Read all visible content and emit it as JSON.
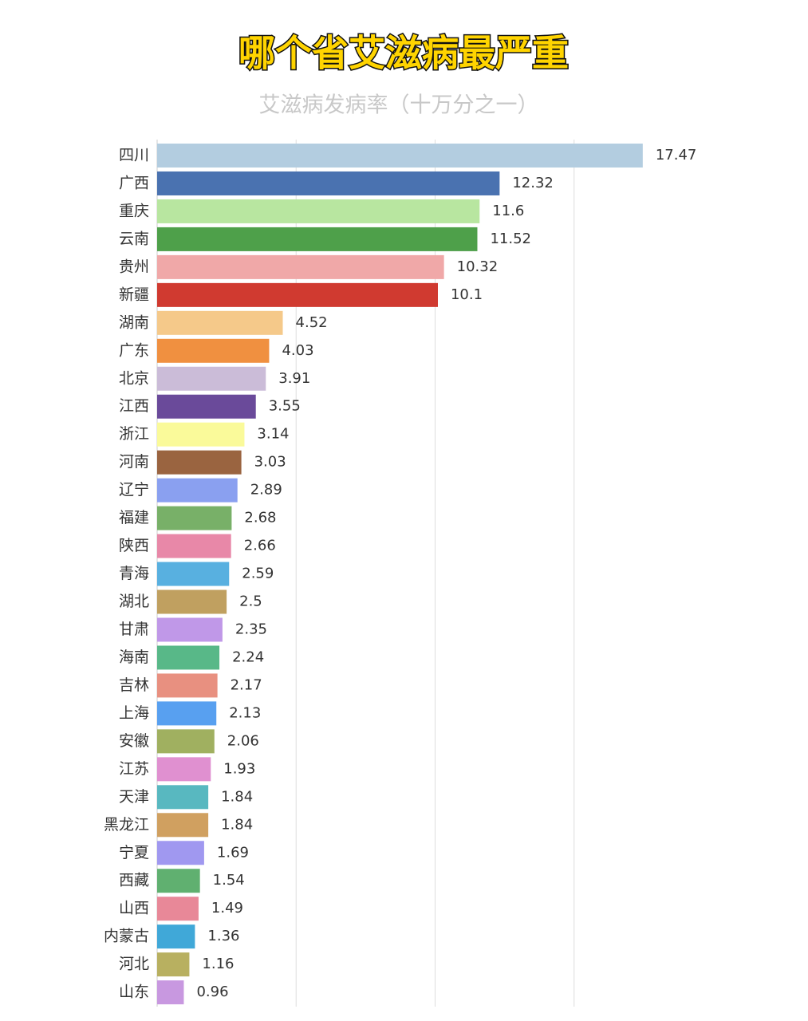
{
  "chart_data": {
    "type": "bar",
    "orientation": "horizontal",
    "title": "哪个省艾滋病最严重",
    "subtitle": "艾滋病发病率（十万分之一）",
    "categories": [
      "四川",
      "广西",
      "重庆",
      "云南",
      "贵州",
      "新疆",
      "湖南",
      "广东",
      "北京",
      "江西",
      "浙江",
      "河南",
      "辽宁",
      "福建",
      "陕西",
      "青海",
      "湖北",
      "甘肃",
      "海南",
      "吉林",
      "上海",
      "安徽",
      "江苏",
      "天津",
      "黑龙江",
      "宁夏",
      "西藏",
      "山西",
      "内蒙古",
      "河北",
      "山东"
    ],
    "values": [
      17.47,
      12.32,
      11.6,
      11.52,
      10.32,
      10.1,
      4.52,
      4.03,
      3.91,
      3.55,
      3.14,
      3.03,
      2.89,
      2.68,
      2.66,
      2.59,
      2.5,
      2.35,
      2.24,
      2.17,
      2.13,
      2.06,
      1.93,
      1.84,
      1.84,
      1.69,
      1.54,
      1.49,
      1.36,
      1.16,
      0.96
    ],
    "colors": [
      "#b3cde0",
      "#4a72b0",
      "#b8e6a0",
      "#4ea04a",
      "#f0a8a8",
      "#d03a30",
      "#f5c98a",
      "#f09040",
      "#cbbcd8",
      "#6a4a9a",
      "#fafa9a",
      "#9a6440",
      "#8aa0f0",
      "#78b068",
      "#e888a8",
      "#58b0e0",
      "#c0a060",
      "#c098e8",
      "#58b888",
      "#e89080",
      "#58a0f0",
      "#a0b060",
      "#e090d0",
      "#58b8c0",
      "#d0a060",
      "#a098f0",
      "#60b070",
      "#e88898",
      "#40a8d8",
      "#b8b060",
      "#c898e0"
    ],
    "xlim": [
      0,
      20
    ],
    "xticks": [
      0,
      5,
      10,
      15
    ],
    "grid": true
  }
}
